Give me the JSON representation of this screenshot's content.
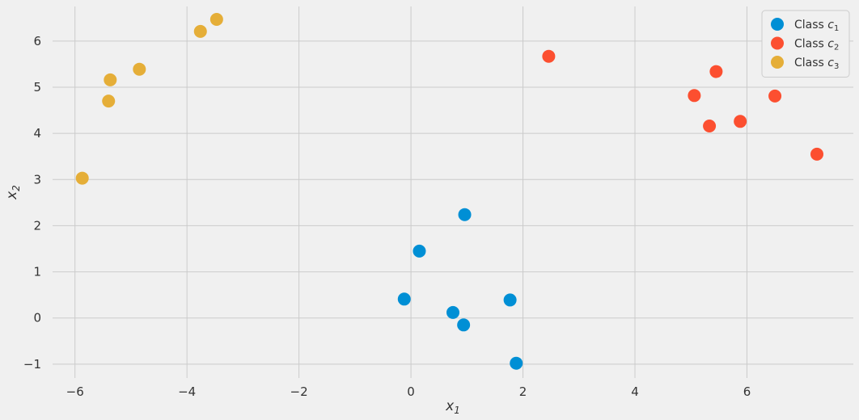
{
  "chart_data": {
    "type": "scatter",
    "xlim": [
      -6.4,
      7.9
    ],
    "ylim": [
      -1.3,
      6.75
    ],
    "xticks": [
      -6,
      -4,
      -2,
      0,
      2,
      4,
      6
    ],
    "yticks": [
      -1,
      0,
      1,
      2,
      3,
      4,
      5,
      6
    ],
    "xtick_labels": [
      "−6",
      "−4",
      "−2",
      "0",
      "2",
      "4",
      "6"
    ],
    "ytick_labels": [
      "−1",
      "0",
      "1",
      "2",
      "3",
      "4",
      "5",
      "6"
    ],
    "xlabel": {
      "base": "x",
      "sub": "1"
    },
    "ylabel": {
      "base": "x",
      "sub": "2"
    },
    "grid": true,
    "legend_position": "top-right",
    "series": [
      {
        "name": "Class c1",
        "label_prefix": "Class ",
        "label_base": "c",
        "label_sub": "1",
        "color": "#008fd5",
        "points": [
          [
            -0.12,
            0.41
          ],
          [
            0.15,
            1.45
          ],
          [
            0.75,
            0.12
          ],
          [
            0.96,
            2.24
          ],
          [
            0.94,
            -0.15
          ],
          [
            1.77,
            0.39
          ],
          [
            1.88,
            -0.98
          ]
        ]
      },
      {
        "name": "Class c2",
        "label_prefix": "Class ",
        "label_base": "c",
        "label_sub": "2",
        "color": "#fc4f30",
        "points": [
          [
            2.46,
            5.67
          ],
          [
            5.06,
            4.82
          ],
          [
            5.45,
            5.34
          ],
          [
            5.33,
            4.16
          ],
          [
            5.88,
            4.26
          ],
          [
            6.5,
            4.81
          ],
          [
            7.25,
            3.55
          ]
        ]
      },
      {
        "name": "Class c3",
        "label_prefix": "Class ",
        "label_base": "c",
        "label_sub": "3",
        "color": "#e5ae38",
        "points": [
          [
            -5.87,
            3.03
          ],
          [
            -5.37,
            5.16
          ],
          [
            -5.4,
            4.7
          ],
          [
            -4.85,
            5.39
          ],
          [
            -3.76,
            6.21
          ],
          [
            -3.47,
            6.47
          ]
        ]
      }
    ]
  }
}
